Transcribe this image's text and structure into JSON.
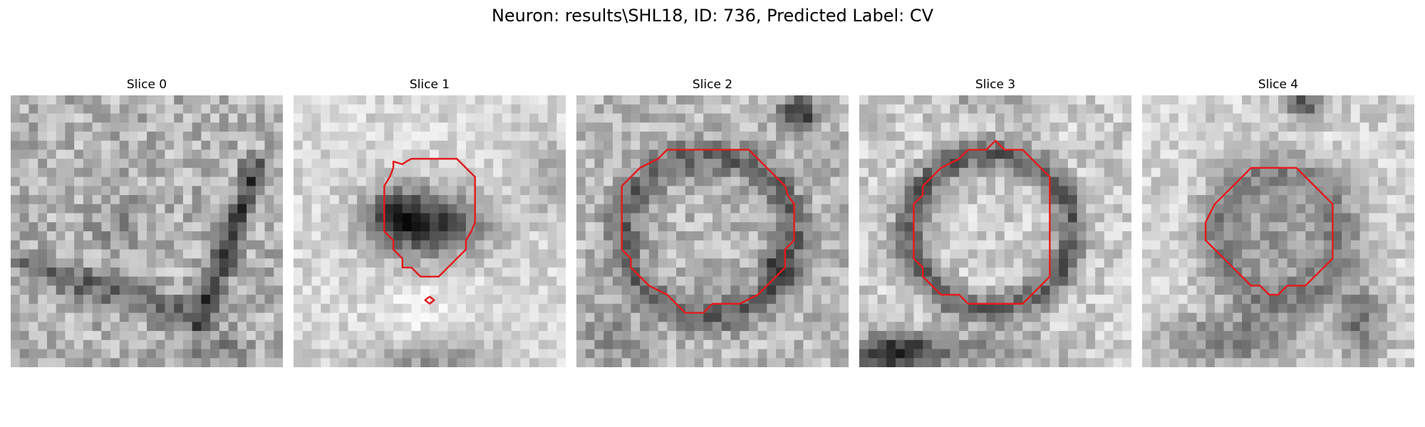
{
  "figure": {
    "suptitle": "Neuron: results\\SHL18, ID: 736, Predicted Label: CV",
    "colormap": "gray",
    "contour_color": "#e31a1c",
    "panels": [
      {
        "title": "Slice 0",
        "has_contour": false
      },
      {
        "title": "Slice 1",
        "has_contour": true
      },
      {
        "title": "Slice 2",
        "has_contour": true
      },
      {
        "title": "Slice 3",
        "has_contour": true
      },
      {
        "title": "Slice 4",
        "has_contour": true
      }
    ]
  }
}
